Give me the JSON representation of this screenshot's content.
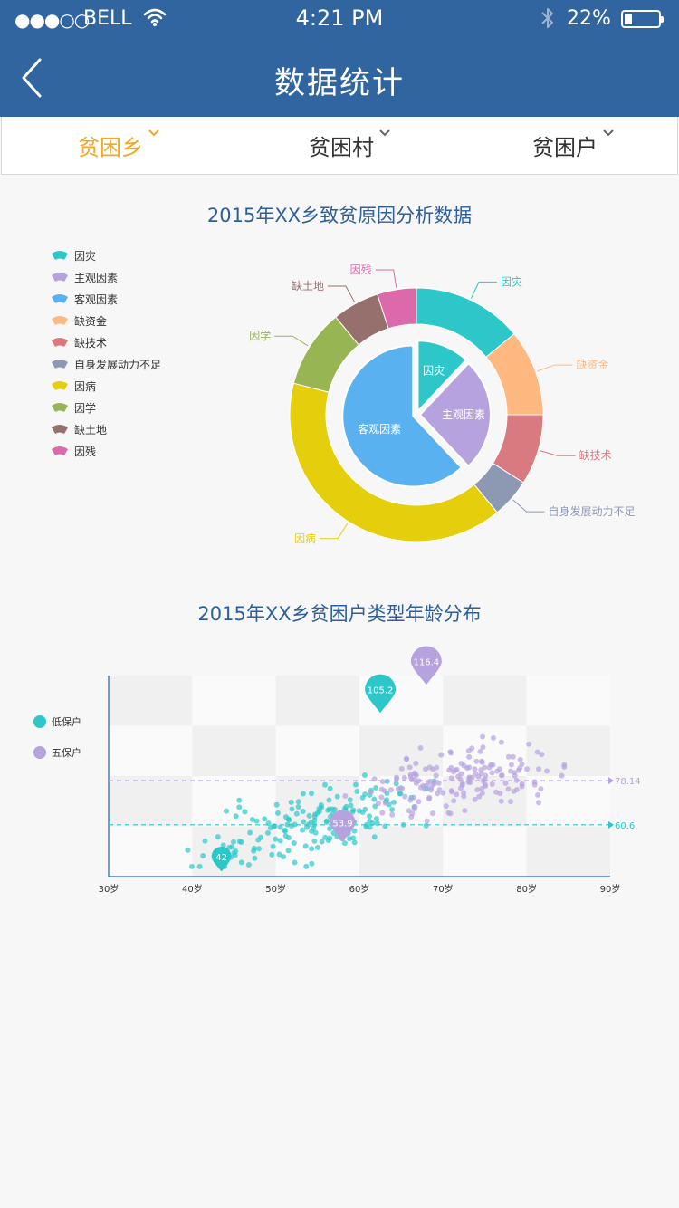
{
  "status_bar": {
    "signal": "●●●○○",
    "carrier": "BELL",
    "time": "4:21 PM",
    "battery": "22%",
    "battery_level": 0.22
  },
  "header": {
    "title": "数据统计"
  },
  "filters": [
    {
      "label": "贫困乡",
      "active": true
    },
    {
      "label": "贫困村",
      "active": false
    },
    {
      "label": "贫困户",
      "active": false
    }
  ],
  "colors": {
    "nav_bg": "#3165a0",
    "accent": "#f5a623",
    "title_blue": "#2f5f9a"
  },
  "chart_data": [
    {
      "type": "pie",
      "title": "2015年XX乡致贫原因分析数据",
      "legend_position": "left",
      "legend": [
        {
          "name": "因灾",
          "color": "#2ec7c9"
        },
        {
          "name": "主观因素",
          "color": "#b6a2de"
        },
        {
          "name": "客观因素",
          "color": "#5ab1ef"
        },
        {
          "name": "缺资金",
          "color": "#ffb980"
        },
        {
          "name": "缺技术",
          "color": "#d87a80"
        },
        {
          "name": "自身发展动力不足",
          "color": "#8d98b3"
        },
        {
          "name": "因病",
          "color": "#e5cf0d"
        },
        {
          "name": "因学",
          "color": "#97b552"
        },
        {
          "name": "缺土地",
          "color": "#95706d"
        },
        {
          "name": "因残",
          "color": "#dc69aa"
        }
      ],
      "inner_ring": [
        {
          "name": "因灾",
          "value": 12,
          "color": "#2ec7c9"
        },
        {
          "name": "主观因素",
          "value": 26,
          "color": "#b6a2de"
        },
        {
          "name": "客观因素",
          "value": 62,
          "color": "#5ab1ef"
        }
      ],
      "outer_ring": [
        {
          "name": "因灾",
          "value": 14,
          "color": "#2ec7c9"
        },
        {
          "name": "缺资金",
          "value": 11,
          "color": "#ffb980"
        },
        {
          "name": "缺技术",
          "value": 9,
          "color": "#d87a80"
        },
        {
          "name": "自身发展动力不足",
          "value": 5,
          "color": "#8d98b3"
        },
        {
          "name": "因病",
          "value": 40,
          "color": "#e5cf0d"
        },
        {
          "name": "因学",
          "value": 10,
          "color": "#97b552"
        },
        {
          "name": "缺土地",
          "value": 6,
          "color": "#95706d"
        },
        {
          "name": "因残",
          "value": 5,
          "color": "#dc69aa"
        }
      ]
    },
    {
      "type": "scatter",
      "title": "2015年XX乡贫困户类型年龄分布",
      "legend_position": "left",
      "grid": true,
      "x_ticks": [
        "30岁",
        "40岁",
        "50岁",
        "60岁",
        "70岁",
        "80岁",
        "90岁"
      ],
      "xlim": [
        30,
        90
      ],
      "ylim": [
        40,
        120
      ],
      "series": [
        {
          "name": "低保户",
          "color": "#2ec7c9",
          "average": 60.6,
          "max": {
            "x": 62.5,
            "y": 105.2,
            "label": "105.2"
          },
          "min": {
            "x": 43.5,
            "y": 42,
            "label": "42"
          },
          "x_range": [
            37,
            72
          ],
          "y_range": [
            44,
            100
          ],
          "count": 180
        },
        {
          "name": "五保户",
          "color": "#b6a2de",
          "average": 78.14,
          "max": {
            "x": 68,
            "y": 116.4,
            "label": "116.4"
          },
          "min": {
            "x": 58,
            "y": 53.9,
            "label": "53.9"
          },
          "x_range": [
            55,
            88
          ],
          "y_range": [
            54,
            108
          ],
          "count": 170
        }
      ]
    }
  ]
}
